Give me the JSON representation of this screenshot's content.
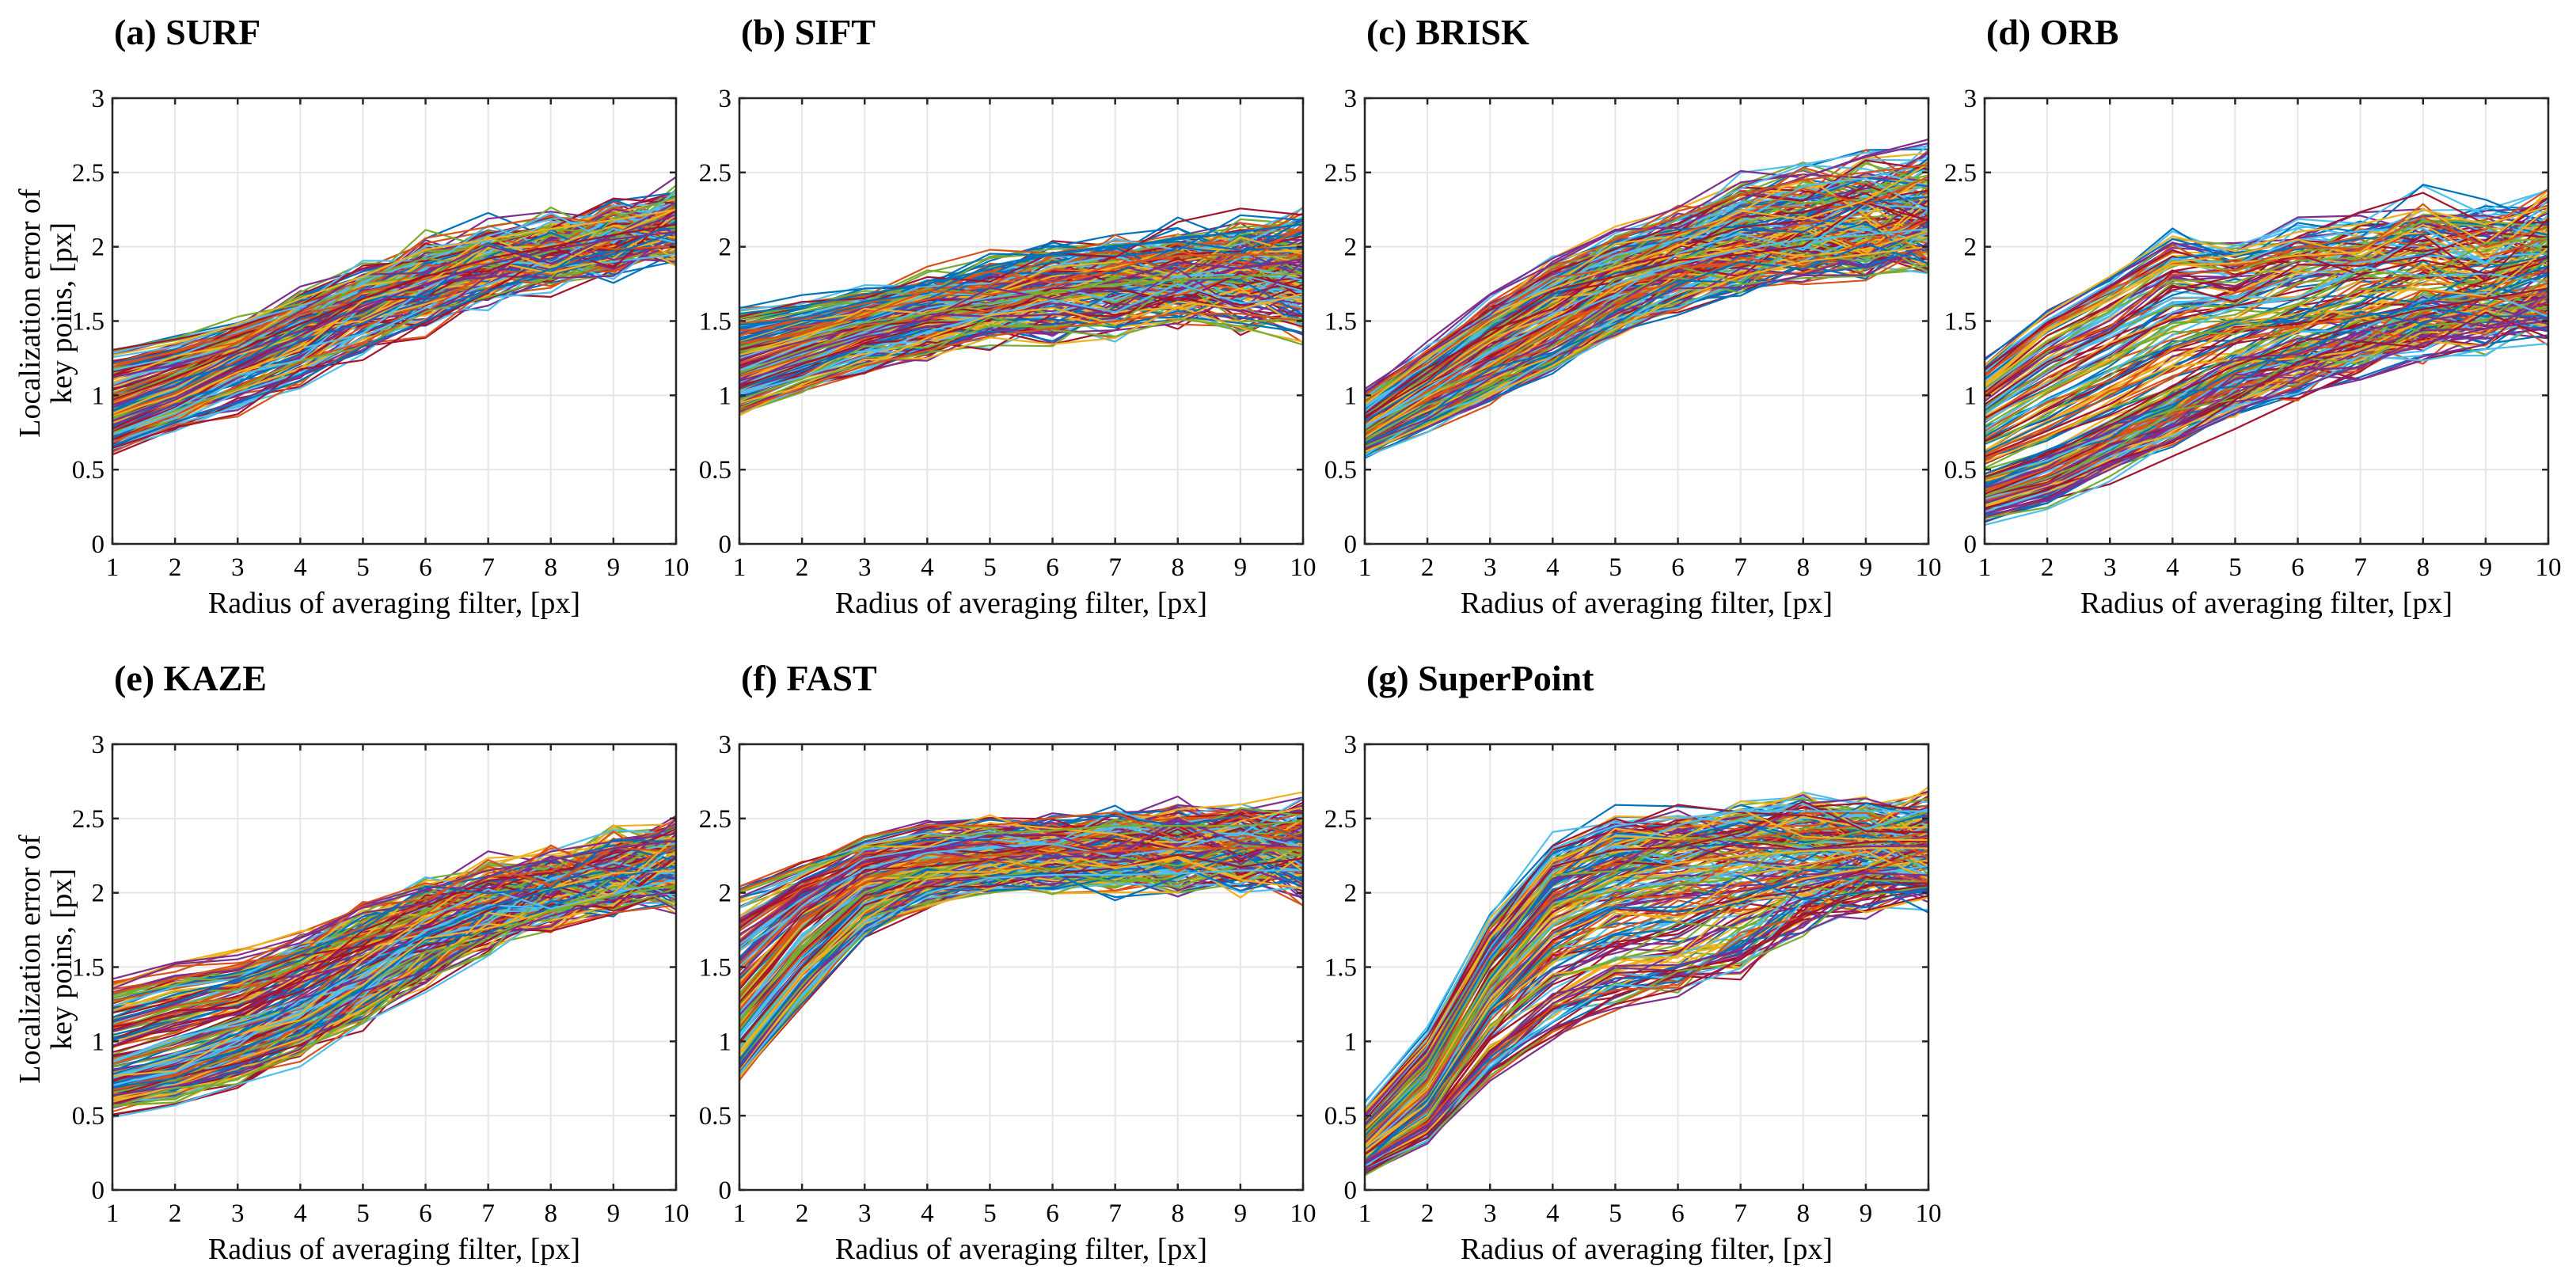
{
  "colors": [
    "#0072BD",
    "#D95319",
    "#EDB120",
    "#7E2F8E",
    "#77AC30",
    "#4DBEEE",
    "#A2142F"
  ],
  "xlabel": "Radius of averaging filter, [px]",
  "ylabel_line1": "Localization error of",
  "ylabel_line2": "key poins, [px]",
  "chart_data": [
    {
      "type": "line",
      "title": "(a) SURF",
      "x": [
        1,
        2,
        3,
        4,
        5,
        6,
        7,
        8,
        9,
        10
      ],
      "xlim": [
        1,
        10
      ],
      "ylim": [
        0,
        3
      ],
      "xticks": [
        "1",
        "2",
        "3",
        "4",
        "5",
        "6",
        "7",
        "8",
        "9",
        "10"
      ],
      "yticks": [
        "0",
        "0.5",
        "1",
        "1.5",
        "2",
        "2.5",
        "3"
      ],
      "grid": true,
      "n_series": 200,
      "representative_series": [
        {
          "values": [
            0.66,
            0.82,
            0.95,
            1.1,
            1.33,
            1.5,
            1.7,
            1.85,
            1.95,
            2.1
          ]
        },
        {
          "values": [
            0.8,
            0.97,
            1.18,
            1.4,
            1.6,
            1.75,
            1.88,
            1.98,
            2.05,
            2.1
          ]
        },
        {
          "values": [
            0.97,
            1.12,
            1.3,
            1.48,
            1.65,
            1.8,
            1.92,
            2.0,
            2.08,
            2.15
          ]
        },
        {
          "values": [
            1.27,
            1.35,
            1.48,
            1.65,
            1.8,
            1.98,
            2.05,
            2.12,
            2.18,
            2.25
          ]
        }
      ]
    },
    {
      "type": "line",
      "title": "(b) SIFT",
      "x": [
        1,
        2,
        3,
        4,
        5,
        6,
        7,
        8,
        9,
        10
      ],
      "xlim": [
        1,
        10
      ],
      "ylim": [
        0,
        3
      ],
      "xticks": [
        "1",
        "2",
        "3",
        "4",
        "5",
        "6",
        "7",
        "8",
        "9",
        "10"
      ],
      "yticks": [
        "0",
        "0.5",
        "1",
        "1.5",
        "2",
        "2.5",
        "3"
      ],
      "grid": true,
      "n_series": 200,
      "representative_series": [
        {
          "values": [
            0.9,
            1.05,
            1.2,
            1.3,
            1.4,
            1.45,
            1.5,
            1.55,
            1.55,
            1.5
          ]
        },
        {
          "values": [
            1.15,
            1.3,
            1.45,
            1.55,
            1.62,
            1.7,
            1.75,
            1.78,
            1.8,
            1.82
          ]
        },
        {
          "values": [
            1.55,
            1.6,
            1.68,
            1.75,
            1.85,
            1.95,
            2.0,
            2.05,
            2.1,
            2.15
          ]
        }
      ]
    },
    {
      "type": "line",
      "title": "(c) BRISK",
      "x": [
        1,
        2,
        3,
        4,
        5,
        6,
        7,
        8,
        9,
        10
      ],
      "xlim": [
        1,
        10
      ],
      "ylim": [
        0,
        3
      ],
      "xticks": [
        "1",
        "2",
        "3",
        "4",
        "5",
        "6",
        "7",
        "8",
        "9",
        "10"
      ],
      "yticks": [
        "0",
        "0.5",
        "1",
        "1.5",
        "2",
        "2.5",
        "3"
      ],
      "grid": true,
      "n_series": 200,
      "representative_series": [
        {
          "values": [
            0.62,
            0.8,
            1.0,
            1.2,
            1.45,
            1.65,
            1.8,
            1.9,
            1.95,
            2.0
          ]
        },
        {
          "values": [
            0.78,
            1.05,
            1.3,
            1.55,
            1.75,
            1.88,
            1.98,
            2.05,
            2.08,
            2.12
          ]
        },
        {
          "values": [
            1.0,
            1.3,
            1.6,
            1.85,
            2.05,
            2.2,
            2.35,
            2.45,
            2.5,
            2.55
          ]
        }
      ]
    },
    {
      "type": "line",
      "title": "(d) ORB",
      "x": [
        1,
        2,
        3,
        4,
        5,
        6,
        7,
        8,
        9,
        10
      ],
      "xlim": [
        1,
        10
      ],
      "ylim": [
        0,
        3
      ],
      "xticks": [
        "1",
        "2",
        "3",
        "4",
        "5",
        "6",
        "7",
        "8",
        "9",
        "10"
      ],
      "yticks": [
        "0",
        "0.5",
        "1",
        "1.5",
        "2",
        "2.5",
        "3"
      ],
      "grid": true,
      "n_series": 200,
      "representative_series": [
        {
          "values": [
            0.18,
            0.3,
            0.5,
            0.7,
            0.9,
            1.05,
            1.2,
            1.35,
            1.45,
            1.5
          ]
        },
        {
          "values": [
            0.45,
            0.6,
            0.8,
            1.0,
            1.2,
            1.35,
            1.48,
            1.58,
            1.65,
            1.72
          ]
        },
        {
          "values": [
            1.2,
            1.55,
            1.8,
            2.07,
            1.97,
            2.1,
            2.15,
            2.25,
            2.15,
            2.27
          ]
        }
      ]
    },
    {
      "type": "line",
      "title": "(e) KAZE",
      "x": [
        1,
        2,
        3,
        4,
        5,
        6,
        7,
        8,
        9,
        10
      ],
      "xlim": [
        1,
        10
      ],
      "ylim": [
        0,
        3
      ],
      "xticks": [
        "1",
        "2",
        "3",
        "4",
        "5",
        "6",
        "7",
        "8",
        "9",
        "10"
      ],
      "yticks": [
        "0",
        "0.5",
        "1",
        "1.5",
        "2",
        "2.5",
        "3"
      ],
      "grid": true,
      "n_series": 200,
      "representative_series": [
        {
          "values": [
            0.56,
            0.62,
            0.75,
            0.92,
            1.2,
            1.45,
            1.7,
            1.88,
            1.98,
            2.05
          ]
        },
        {
          "values": [
            0.78,
            0.9,
            1.05,
            1.25,
            1.5,
            1.72,
            1.9,
            2.02,
            2.1,
            2.18
          ]
        },
        {
          "values": [
            1.42,
            1.53,
            1.58,
            1.7,
            1.9,
            2.02,
            2.15,
            2.22,
            2.3,
            2.35
          ]
        }
      ]
    },
    {
      "type": "line",
      "title": "(f) FAST",
      "x": [
        1,
        2,
        3,
        4,
        5,
        6,
        7,
        8,
        9,
        10
      ],
      "xlim": [
        1,
        10
      ],
      "ylim": [
        0,
        3
      ],
      "xticks": [
        "1",
        "2",
        "3",
        "4",
        "5",
        "6",
        "7",
        "8",
        "9",
        "10"
      ],
      "yticks": [
        "0",
        "0.5",
        "1",
        "1.5",
        "2",
        "2.5",
        "3"
      ],
      "grid": true,
      "n_series": 200,
      "representative_series": [
        {
          "values": [
            0.78,
            1.3,
            1.75,
            2.0,
            2.1,
            2.12,
            2.12,
            2.13,
            2.15,
            2.15
          ]
        },
        {
          "values": [
            1.3,
            1.8,
            2.1,
            2.2,
            2.25,
            2.27,
            2.28,
            2.3,
            2.3,
            2.3
          ]
        },
        {
          "values": [
            2.0,
            2.15,
            2.3,
            2.38,
            2.4,
            2.42,
            2.45,
            2.45,
            2.45,
            2.48
          ]
        }
      ]
    },
    {
      "type": "line",
      "title": "(g) SuperPoint",
      "x": [
        1,
        2,
        3,
        4,
        5,
        6,
        7,
        8,
        9,
        10
      ],
      "xlim": [
        1,
        10
      ],
      "ylim": [
        0,
        3
      ],
      "xticks": [
        "1",
        "2",
        "3",
        "4",
        "5",
        "6",
        "7",
        "8",
        "9",
        "10"
      ],
      "yticks": [
        "0",
        "0.5",
        "1",
        "1.5",
        "2",
        "2.5",
        "3"
      ],
      "grid": true,
      "n_series": 200,
      "representative_series": [
        {
          "values": [
            0.15,
            0.35,
            0.8,
            1.08,
            1.25,
            1.35,
            1.55,
            1.85,
            2.0,
            2.05
          ]
        },
        {
          "values": [
            0.3,
            0.7,
            1.4,
            1.9,
            2.1,
            2.2,
            2.25,
            2.28,
            2.3,
            2.3
          ]
        },
        {
          "values": [
            0.55,
            1.05,
            1.8,
            2.3,
            2.45,
            2.5,
            2.55,
            2.55,
            2.55,
            2.55
          ]
        }
      ]
    }
  ]
}
